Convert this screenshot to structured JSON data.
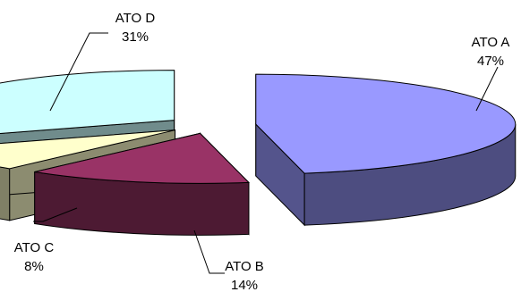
{
  "chart_data": {
    "type": "pie",
    "style": "3d-exploded",
    "title": "",
    "legend": "none",
    "slices": [
      {
        "category": "ATO  A",
        "value": 47,
        "label": "47%",
        "color": "#9999ff"
      },
      {
        "category": "ATO  B",
        "value": 14,
        "label": "14%",
        "color": "#993366"
      },
      {
        "category": "ATO  C",
        "value": 8,
        "label": "8%",
        "color": "#ffffcc"
      },
      {
        "category": "ATO D",
        "value": 31,
        "label": "31%",
        "color": "#ccffff"
      }
    ]
  }
}
